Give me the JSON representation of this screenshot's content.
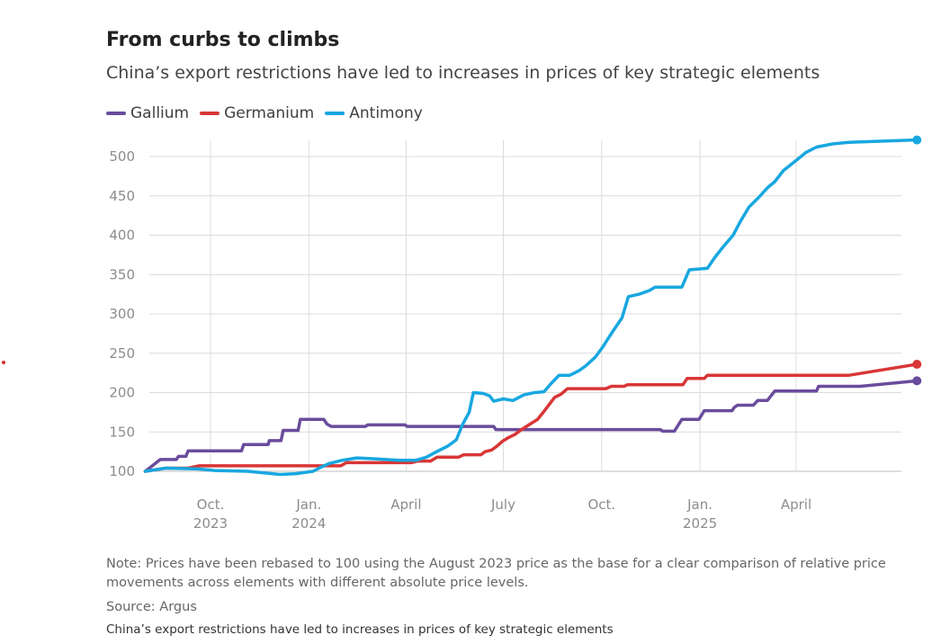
{
  "header": {
    "title": "From curbs to climbs",
    "subtitle": "China’s export restrictions have led to increases in prices of key strategic elements"
  },
  "footer": {
    "note": "Note: Prices have been rebased to 100 using the August 2023 price as the base for a clear comparison of relative price movements across elements with different absolute price levels.",
    "source": "Source: Argus",
    "caption": "China’s export restrictions have led to increases in prices of key strategic elements"
  },
  "chart_data": {
    "type": "line",
    "title": "From curbs to climbs",
    "subtitle": "China’s export restrictions have led to increases in prices of key strategic elements",
    "xlabel": "",
    "ylabel": "",
    "x_range": [
      "2023-08-01",
      "2025-07-23"
    ],
    "ylim": [
      100,
      520
    ],
    "y_ticks": [
      100,
      150,
      200,
      250,
      300,
      350,
      400,
      450,
      500
    ],
    "x_ticks": [
      {
        "date": "2023-10-01",
        "label": [
          "Oct.",
          "2023"
        ]
      },
      {
        "date": "2024-01-01",
        "label": [
          "Jan.",
          "2024"
        ]
      },
      {
        "date": "2024-04-01",
        "label": [
          "April"
        ]
      },
      {
        "date": "2024-07-01",
        "label": [
          "July"
        ]
      },
      {
        "date": "2024-10-01",
        "label": [
          "Oct."
        ]
      },
      {
        "date": "2025-01-01",
        "label": [
          "Jan.",
          "2025"
        ]
      },
      {
        "date": "2025-04-01",
        "label": [
          "April"
        ]
      }
    ],
    "grid": {
      "vertical": true,
      "horizontal": true
    },
    "legend_position": "top-left",
    "series": [
      {
        "name": "Gallium",
        "color": "#6a4c9c",
        "points": [
          [
            "2023-08-01",
            100
          ],
          [
            "2023-08-15",
            115
          ],
          [
            "2023-08-30",
            115
          ],
          [
            "2023-09-01",
            119
          ],
          [
            "2023-09-08",
            119
          ],
          [
            "2023-09-10",
            126
          ],
          [
            "2023-10-30",
            126
          ],
          [
            "2023-11-01",
            134
          ],
          [
            "2023-11-24",
            134
          ],
          [
            "2023-11-25",
            139
          ],
          [
            "2023-12-06",
            139
          ],
          [
            "2023-12-08",
            152
          ],
          [
            "2023-12-22",
            152
          ],
          [
            "2023-12-24",
            166
          ],
          [
            "2024-01-15",
            166
          ],
          [
            "2024-01-18",
            160
          ],
          [
            "2024-01-22",
            157
          ],
          [
            "2024-02-23",
            157
          ],
          [
            "2024-02-25",
            159
          ],
          [
            "2024-03-31",
            159
          ],
          [
            "2024-04-02",
            157
          ],
          [
            "2024-06-22",
            157
          ],
          [
            "2024-06-24",
            153
          ],
          [
            "2024-11-25",
            153
          ],
          [
            "2024-11-27",
            151
          ],
          [
            "2024-12-08",
            151
          ],
          [
            "2024-12-15",
            166
          ],
          [
            "2024-12-31",
            166
          ],
          [
            "2025-01-05",
            177
          ],
          [
            "2025-01-31",
            177
          ],
          [
            "2025-02-02",
            181
          ],
          [
            "2025-02-05",
            184
          ],
          [
            "2025-02-20",
            184
          ],
          [
            "2025-02-24",
            190
          ],
          [
            "2025-03-05",
            190
          ],
          [
            "2025-03-12",
            202
          ],
          [
            "2025-04-20",
            202
          ],
          [
            "2025-04-22",
            208
          ],
          [
            "2025-05-31",
            208
          ],
          [
            "2025-07-23",
            215
          ]
        ]
      },
      {
        "name": "Germanium",
        "color": "#d93636",
        "points": [
          [
            "2023-08-01",
            100
          ],
          [
            "2023-08-20",
            104
          ],
          [
            "2023-09-10",
            104
          ],
          [
            "2023-09-20",
            107
          ],
          [
            "2024-01-31",
            107
          ],
          [
            "2024-02-05",
            111
          ],
          [
            "2024-04-06",
            111
          ],
          [
            "2024-04-12",
            113
          ],
          [
            "2024-04-24",
            113
          ],
          [
            "2024-04-30",
            118
          ],
          [
            "2024-05-20",
            118
          ],
          [
            "2024-05-25",
            121
          ],
          [
            "2024-06-10",
            121
          ],
          [
            "2024-06-14",
            125
          ],
          [
            "2024-06-20",
            127
          ],
          [
            "2024-06-25",
            132
          ],
          [
            "2024-06-30",
            138
          ],
          [
            "2024-07-06",
            143
          ],
          [
            "2024-07-12",
            147
          ],
          [
            "2024-07-18",
            153
          ],
          [
            "2024-07-26",
            160
          ],
          [
            "2024-08-02",
            166
          ],
          [
            "2024-08-08",
            176
          ],
          [
            "2024-08-13",
            185
          ],
          [
            "2024-08-18",
            194
          ],
          [
            "2024-08-24",
            198
          ],
          [
            "2024-08-30",
            205
          ],
          [
            "2024-10-05",
            205
          ],
          [
            "2024-10-10",
            208
          ],
          [
            "2024-10-22",
            208
          ],
          [
            "2024-10-25",
            210
          ],
          [
            "2024-12-16",
            210
          ],
          [
            "2024-12-20",
            218
          ],
          [
            "2025-01-05",
            218
          ],
          [
            "2025-01-08",
            222
          ],
          [
            "2025-05-20",
            222
          ],
          [
            "2025-07-23",
            236
          ]
        ]
      },
      {
        "name": "Antimony",
        "color": "#18a7e0",
        "points": [
          [
            "2023-08-01",
            100
          ],
          [
            "2023-08-20",
            104
          ],
          [
            "2023-09-20",
            103
          ],
          [
            "2023-10-05",
            101
          ],
          [
            "2023-11-05",
            100
          ],
          [
            "2023-11-20",
            98
          ],
          [
            "2023-12-05",
            96
          ],
          [
            "2023-12-20",
            97
          ],
          [
            "2024-01-05",
            100
          ],
          [
            "2024-01-12",
            105
          ],
          [
            "2024-01-20",
            110
          ],
          [
            "2024-02-01",
            114
          ],
          [
            "2024-02-15",
            117
          ],
          [
            "2024-03-01",
            116
          ],
          [
            "2024-03-25",
            114
          ],
          [
            "2024-04-10",
            114
          ],
          [
            "2024-04-20",
            118
          ],
          [
            "2024-05-01",
            126
          ],
          [
            "2024-05-10",
            132
          ],
          [
            "2024-05-18",
            140
          ],
          [
            "2024-05-24",
            160
          ],
          [
            "2024-05-30",
            175
          ],
          [
            "2024-06-03",
            200
          ],
          [
            "2024-06-12",
            199
          ],
          [
            "2024-06-18",
            196
          ],
          [
            "2024-06-22",
            189
          ],
          [
            "2024-07-01",
            192
          ],
          [
            "2024-07-10",
            190
          ],
          [
            "2024-07-20",
            197
          ],
          [
            "2024-07-30",
            200
          ],
          [
            "2024-08-08",
            201
          ],
          [
            "2024-08-15",
            212
          ],
          [
            "2024-08-22",
            222
          ],
          [
            "2024-09-01",
            222
          ],
          [
            "2024-09-10",
            228
          ],
          [
            "2024-09-16",
            234
          ],
          [
            "2024-09-25",
            245
          ],
          [
            "2024-10-02",
            258
          ],
          [
            "2024-10-10",
            275
          ],
          [
            "2024-10-20",
            295
          ],
          [
            "2024-10-26",
            322
          ],
          [
            "2024-11-05",
            325
          ],
          [
            "2024-11-15",
            330
          ],
          [
            "2024-11-20",
            334
          ],
          [
            "2024-12-15",
            334
          ],
          [
            "2024-12-22",
            356
          ],
          [
            "2025-01-08",
            358
          ],
          [
            "2025-01-15",
            372
          ],
          [
            "2025-01-22",
            384
          ],
          [
            "2025-02-01",
            400
          ],
          [
            "2025-02-08",
            418
          ],
          [
            "2025-02-16",
            436
          ],
          [
            "2025-02-25",
            448
          ],
          [
            "2025-03-05",
            460
          ],
          [
            "2025-03-12",
            468
          ],
          [
            "2025-03-20",
            482
          ],
          [
            "2025-04-01",
            495
          ],
          [
            "2025-04-10",
            505
          ],
          [
            "2025-04-20",
            512
          ],
          [
            "2025-05-05",
            516
          ],
          [
            "2025-05-20",
            518
          ],
          [
            "2025-07-23",
            521
          ]
        ]
      }
    ]
  }
}
